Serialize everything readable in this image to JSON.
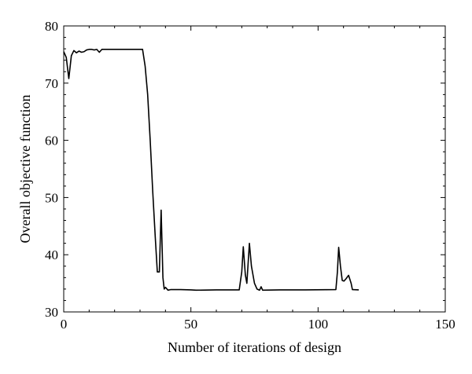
{
  "chart_data": {
    "type": "line",
    "title": "",
    "xlabel": "Number of iterations of design",
    "ylabel": "Overall objective function",
    "xlim": [
      0,
      150
    ],
    "ylim": [
      30,
      80
    ],
    "xticks": [
      0,
      50,
      100,
      150
    ],
    "yticks": [
      30,
      40,
      50,
      60,
      70,
      80
    ],
    "xtick_labels": [
      "0",
      "50",
      "100",
      "150"
    ],
    "ytick_labels": [
      "30",
      "40",
      "50",
      "60",
      "70",
      "80"
    ],
    "grid": false,
    "legend": "none",
    "series": [
      {
        "color": "#000000",
        "points": [
          [
            0,
            75.5
          ],
          [
            1,
            74.5
          ],
          [
            2,
            70.8
          ],
          [
            3,
            74.8
          ],
          [
            4,
            75.7
          ],
          [
            5,
            75.3
          ],
          [
            6,
            75.6
          ],
          [
            7,
            75.4
          ],
          [
            8,
            75.5
          ],
          [
            9,
            75.8
          ],
          [
            10,
            75.9
          ],
          [
            11,
            75.9
          ],
          [
            12,
            75.8
          ],
          [
            13,
            75.9
          ],
          [
            14,
            75.4
          ],
          [
            15,
            75.9
          ],
          [
            20,
            75.9
          ],
          [
            25,
            75.9
          ],
          [
            31,
            75.9
          ],
          [
            32,
            73.0
          ],
          [
            33,
            68.0
          ],
          [
            34,
            60.0
          ],
          [
            35,
            51.0
          ],
          [
            36,
            43.0
          ],
          [
            36.8,
            37.0
          ],
          [
            37.6,
            37.0
          ],
          [
            38.3,
            47.8
          ],
          [
            39,
            36.0
          ],
          [
            39.5,
            34.0
          ],
          [
            40,
            34.3
          ],
          [
            41,
            33.8
          ],
          [
            42,
            33.9
          ],
          [
            46,
            33.9
          ],
          [
            50,
            33.85
          ],
          [
            52,
            33.8
          ],
          [
            60,
            33.85
          ],
          [
            69,
            33.85
          ],
          [
            70,
            37.0
          ],
          [
            70.6,
            41.4
          ],
          [
            71.4,
            36.5
          ],
          [
            72,
            35.0
          ],
          [
            73,
            42.0
          ],
          [
            73.8,
            38.0
          ],
          [
            75,
            35.0
          ],
          [
            76,
            34.0
          ],
          [
            77,
            33.8
          ],
          [
            77.6,
            34.4
          ],
          [
            78.2,
            33.8
          ],
          [
            85,
            33.85
          ],
          [
            95,
            33.85
          ],
          [
            107,
            33.9
          ],
          [
            107.6,
            37.0
          ],
          [
            108.1,
            41.3
          ],
          [
            108.8,
            38.0
          ],
          [
            109.5,
            35.5
          ],
          [
            110.2,
            35.4
          ],
          [
            111,
            35.8
          ],
          [
            112,
            36.4
          ],
          [
            113,
            35.0
          ],
          [
            113.5,
            33.9
          ],
          [
            116,
            33.85
          ]
        ]
      }
    ]
  }
}
